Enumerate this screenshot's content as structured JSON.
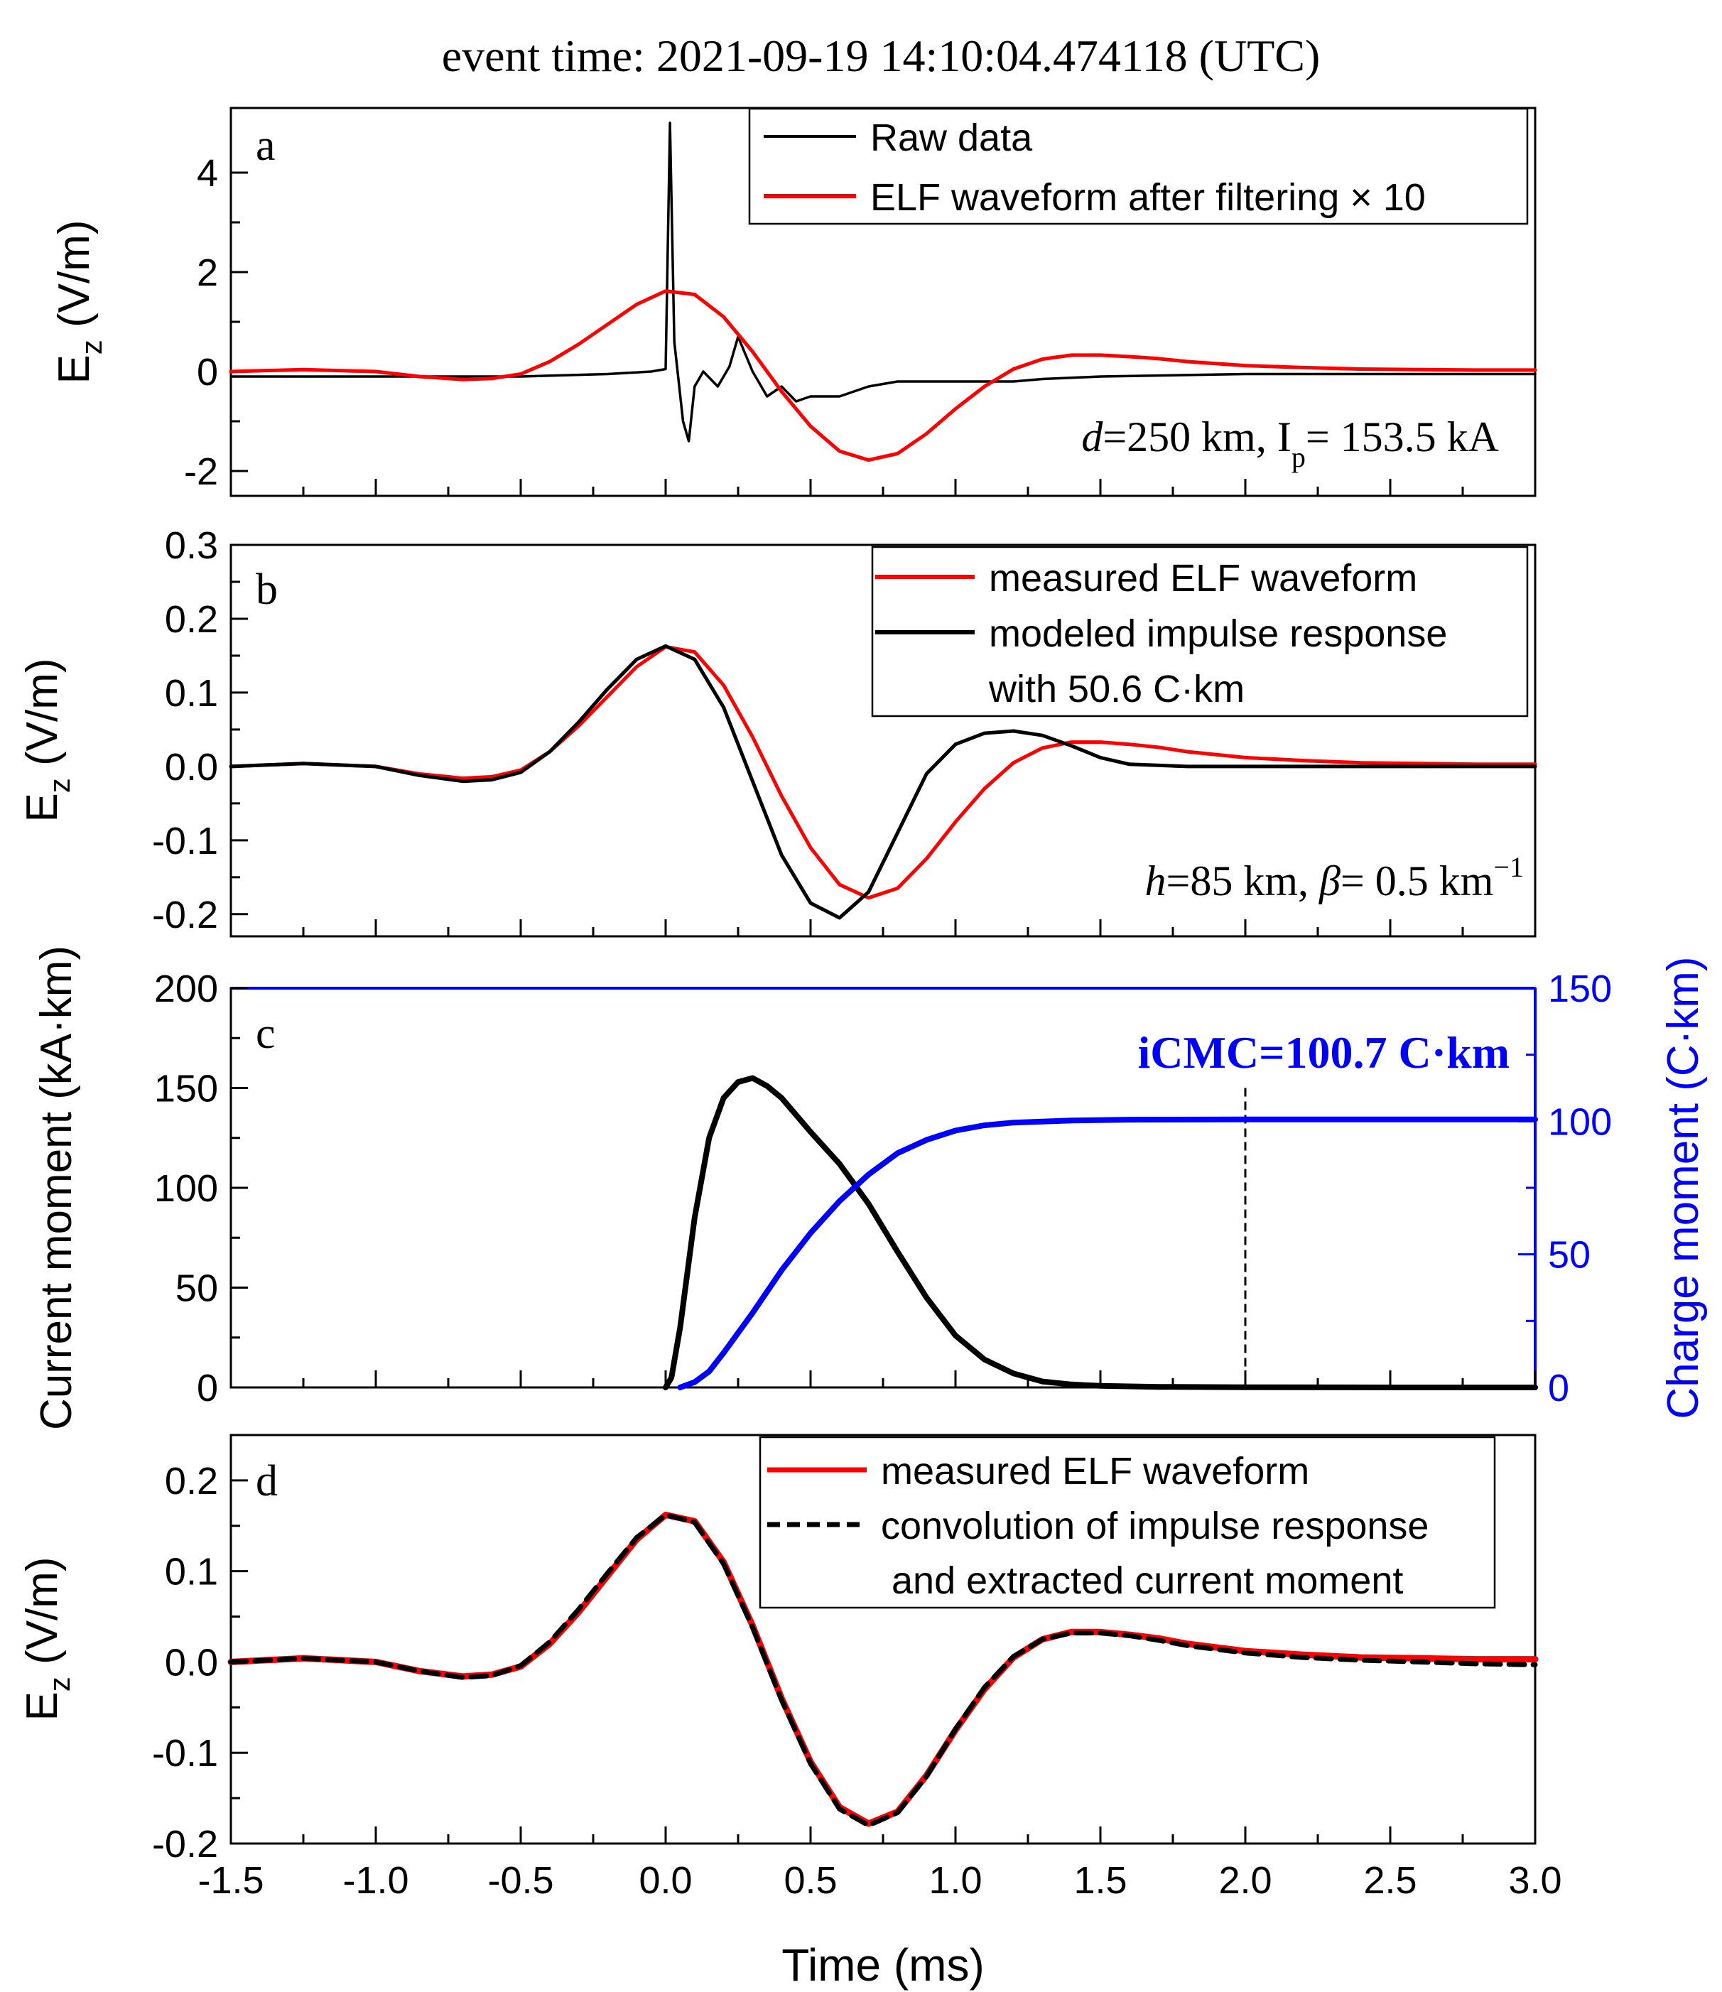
{
  "figure": {
    "title": "event time: 2021-09-19 14:10:04.474118 (UTC)",
    "xlabel": "Time (ms)",
    "xlim": [
      -1.5,
      3.0
    ],
    "xticks": [
      "-1.5",
      "-1.0",
      "-0.5",
      "0.0",
      "0.5",
      "1.0",
      "1.5",
      "2.0",
      "2.5",
      "3.0"
    ],
    "ylabel_ez": "E",
    "ylabel_ez_sub": "z",
    "ylabel_ez_unit": " (V/m)"
  },
  "panel_a": {
    "tag": "a",
    "annotation": {
      "d": "d",
      "rest": "=250 km, I",
      "sub": "p",
      "tail": "= 153.5 kA"
    },
    "legend": [
      "Raw data",
      "ELF waveform after filtering × 10"
    ]
  },
  "panel_b": {
    "tag": "b",
    "annotation": {
      "h": "h",
      "mid": "=85 km, ",
      "beta": "β",
      "tail": "= 0.5 km",
      "sup": "−1"
    },
    "legend": [
      "measured ELF waveform",
      "modeled impulse response",
      " with 50.6 C·km"
    ]
  },
  "panel_c": {
    "tag": "c",
    "ylabel_left": "Current moment (kA·km)",
    "ylabel_right": "Charge moment (C·km)",
    "annotation": "iCMC=100.7 C·km",
    "marker_time": 2.0
  },
  "panel_d": {
    "tag": "d",
    "legend": [
      "measured ELF waveform",
      "convolution of impulse response",
      "and extracted current moment"
    ]
  },
  "colors": {
    "red": "#ff0000",
    "blue": "#0000ff",
    "black": "#000000"
  },
  "chart_data": [
    {
      "type": "line",
      "panel": "a",
      "title": "event time: 2021-09-19 14:10:04.474118 (UTC)",
      "xlabel": "Time (ms)",
      "ylabel": "Ez (V/m)",
      "xlim": [
        -1.5,
        3.0
      ],
      "ylim": [
        -2.5,
        5.3
      ],
      "yticks": [
        "-2",
        "0",
        "2",
        "4"
      ],
      "series": [
        {
          "name": "Raw data",
          "color": "#000000",
          "x": [
            -1.5,
            -1.0,
            -0.5,
            -0.2,
            -0.05,
            0.0,
            0.015,
            0.03,
            0.06,
            0.08,
            0.1,
            0.13,
            0.18,
            0.22,
            0.25,
            0.3,
            0.35,
            0.4,
            0.45,
            0.5,
            0.55,
            0.6,
            0.65,
            0.7,
            0.8,
            0.9,
            1.0,
            1.1,
            1.2,
            1.3,
            1.5,
            2.0,
            2.5,
            3.0
          ],
          "y": [
            -0.1,
            -0.1,
            -0.1,
            -0.05,
            0.0,
            0.05,
            5.0,
            0.6,
            -1.0,
            -1.4,
            -0.3,
            0.0,
            -0.3,
            0.1,
            0.7,
            0.0,
            -0.5,
            -0.3,
            -0.6,
            -0.5,
            -0.5,
            -0.5,
            -0.4,
            -0.3,
            -0.2,
            -0.2,
            -0.2,
            -0.2,
            -0.2,
            -0.15,
            -0.1,
            -0.05,
            -0.05,
            -0.05
          ]
        },
        {
          "name": "ELF waveform after filtering × 10",
          "color": "#ff0000",
          "x": [
            -1.5,
            -1.25,
            -1.0,
            -0.85,
            -0.7,
            -0.6,
            -0.5,
            -0.4,
            -0.3,
            -0.2,
            -0.1,
            0.0,
            0.1,
            0.2,
            0.3,
            0.4,
            0.5,
            0.6,
            0.7,
            0.8,
            0.9,
            1.0,
            1.1,
            1.2,
            1.3,
            1.4,
            1.5,
            1.6,
            1.7,
            1.8,
            2.0,
            2.2,
            2.4,
            2.6,
            2.8,
            3.0
          ],
          "y": [
            0.0,
            0.04,
            0.0,
            -0.1,
            -0.16,
            -0.14,
            -0.05,
            0.2,
            0.55,
            0.95,
            1.35,
            1.62,
            1.55,
            1.1,
            0.4,
            -0.4,
            -1.1,
            -1.6,
            -1.78,
            -1.65,
            -1.25,
            -0.75,
            -0.3,
            0.05,
            0.25,
            0.33,
            0.33,
            0.3,
            0.26,
            0.2,
            0.12,
            0.08,
            0.05,
            0.04,
            0.03,
            0.03
          ]
        }
      ]
    },
    {
      "type": "line",
      "panel": "b",
      "xlabel": "Time (ms)",
      "ylabel": "Ez (V/m)",
      "xlim": [
        -1.5,
        3.0
      ],
      "ylim": [
        -0.23,
        0.3
      ],
      "yticks": [
        "-0.2",
        "-0.1",
        "0.0",
        "0.1",
        "0.2",
        "0.3"
      ],
      "series": [
        {
          "name": "measured ELF waveform",
          "color": "#ff0000",
          "x": [
            -1.5,
            -1.25,
            -1.0,
            -0.85,
            -0.7,
            -0.6,
            -0.5,
            -0.4,
            -0.3,
            -0.2,
            -0.1,
            0.0,
            0.1,
            0.2,
            0.3,
            0.4,
            0.5,
            0.6,
            0.7,
            0.8,
            0.9,
            1.0,
            1.1,
            1.2,
            1.3,
            1.4,
            1.5,
            1.6,
            1.7,
            1.8,
            2.0,
            2.2,
            2.4,
            2.6,
            2.8,
            3.0
          ],
          "y": [
            0.0,
            0.004,
            0.0,
            -0.01,
            -0.016,
            -0.014,
            -0.005,
            0.02,
            0.055,
            0.095,
            0.135,
            0.162,
            0.155,
            0.11,
            0.04,
            -0.04,
            -0.11,
            -0.16,
            -0.178,
            -0.165,
            -0.125,
            -0.075,
            -0.03,
            0.005,
            0.025,
            0.033,
            0.033,
            0.03,
            0.026,
            0.02,
            0.012,
            0.008,
            0.005,
            0.004,
            0.003,
            0.003
          ]
        },
        {
          "name": "modeled impulse response with 50.6 C·km",
          "color": "#000000",
          "x": [
            -1.5,
            -1.25,
            -1.0,
            -0.85,
            -0.7,
            -0.6,
            -0.5,
            -0.4,
            -0.3,
            -0.2,
            -0.1,
            0.0,
            0.1,
            0.2,
            0.3,
            0.4,
            0.5,
            0.6,
            0.7,
            0.8,
            0.9,
            1.0,
            1.1,
            1.2,
            1.3,
            1.4,
            1.5,
            1.6,
            1.8,
            2.0,
            2.5,
            3.0
          ],
          "y": [
            0.0,
            0.004,
            0.0,
            -0.012,
            -0.02,
            -0.018,
            -0.008,
            0.02,
            0.06,
            0.105,
            0.145,
            0.163,
            0.145,
            0.08,
            -0.02,
            -0.12,
            -0.185,
            -0.205,
            -0.17,
            -0.09,
            -0.01,
            0.03,
            0.045,
            0.048,
            0.042,
            0.028,
            0.012,
            0.003,
            0.0,
            0.0,
            0.0,
            0.0
          ]
        }
      ]
    },
    {
      "type": "line",
      "panel": "c",
      "xlabel": "Time (ms)",
      "ylabel": "Current moment (kA·km)",
      "ylabel_right": "Charge moment (C·km)",
      "xlim": [
        -1.5,
        3.0
      ],
      "ylim": [
        0,
        200
      ],
      "ylim_right": [
        0,
        150
      ],
      "yticks": [
        "0",
        "50",
        "100",
        "150",
        "200"
      ],
      "yticks_right": [
        "0",
        "50",
        "100",
        "150"
      ],
      "series": [
        {
          "name": "Current moment",
          "axis": "left",
          "color": "#000000",
          "x": [
            0.0,
            0.02,
            0.05,
            0.1,
            0.15,
            0.2,
            0.25,
            0.3,
            0.35,
            0.4,
            0.5,
            0.6,
            0.7,
            0.8,
            0.9,
            1.0,
            1.1,
            1.2,
            1.3,
            1.4,
            1.5,
            1.7,
            2.0,
            2.5,
            3.0
          ],
          "y": [
            0,
            5,
            30,
            85,
            125,
            145,
            153,
            155,
            151,
            145,
            128,
            112,
            92,
            68,
            45,
            26,
            14,
            7,
            3,
            1.5,
            0.8,
            0.3,
            0.1,
            0,
            0
          ]
        },
        {
          "name": "Charge moment",
          "axis": "right",
          "color": "#0000ff",
          "x": [
            0.05,
            0.1,
            0.15,
            0.2,
            0.3,
            0.4,
            0.5,
            0.6,
            0.7,
            0.8,
            0.9,
            1.0,
            1.1,
            1.2,
            1.4,
            1.6,
            2.0,
            3.0
          ],
          "y": [
            0,
            2,
            6,
            13,
            28,
            44,
            58,
            70,
            80,
            88,
            93,
            96.5,
            98.5,
            99.5,
            100.3,
            100.6,
            100.7,
            100.7
          ]
        }
      ]
    },
    {
      "type": "line",
      "panel": "d",
      "xlabel": "Time (ms)",
      "ylabel": "Ez (V/m)",
      "xlim": [
        -1.5,
        3.0
      ],
      "ylim": [
        -0.2,
        0.25
      ],
      "yticks": [
        "-0.2",
        "-0.1",
        "0.0",
        "0.1",
        "0.2"
      ],
      "series": [
        {
          "name": "measured ELF waveform",
          "color": "#ff0000",
          "x": [
            -1.5,
            -1.25,
            -1.0,
            -0.85,
            -0.7,
            -0.6,
            -0.5,
            -0.4,
            -0.3,
            -0.2,
            -0.1,
            0.0,
            0.1,
            0.2,
            0.3,
            0.4,
            0.5,
            0.6,
            0.7,
            0.8,
            0.9,
            1.0,
            1.1,
            1.2,
            1.3,
            1.4,
            1.5,
            1.6,
            1.7,
            1.8,
            2.0,
            2.2,
            2.4,
            2.6,
            2.8,
            3.0
          ],
          "y": [
            0.0,
            0.004,
            0.0,
            -0.01,
            -0.016,
            -0.014,
            -0.005,
            0.02,
            0.055,
            0.095,
            0.135,
            0.162,
            0.155,
            0.11,
            0.04,
            -0.04,
            -0.11,
            -0.16,
            -0.178,
            -0.165,
            -0.125,
            -0.075,
            -0.03,
            0.005,
            0.025,
            0.033,
            0.033,
            0.03,
            0.026,
            0.02,
            0.012,
            0.008,
            0.005,
            0.004,
            0.003,
            0.003
          ]
        },
        {
          "name": "convolution of impulse response and extracted current moment",
          "color": "#000000",
          "dash": true,
          "x": [
            -1.5,
            -1.25,
            -1.0,
            -0.85,
            -0.7,
            -0.6,
            -0.5,
            -0.4,
            -0.3,
            -0.2,
            -0.1,
            0.0,
            0.1,
            0.2,
            0.3,
            0.4,
            0.5,
            0.6,
            0.7,
            0.8,
            0.9,
            1.0,
            1.1,
            1.2,
            1.3,
            1.4,
            1.5,
            1.6,
            1.7,
            1.8,
            2.0,
            2.2,
            2.4,
            2.6,
            2.8,
            3.0
          ],
          "y": [
            0.0,
            0.004,
            0.0,
            -0.01,
            -0.017,
            -0.015,
            -0.004,
            0.022,
            0.058,
            0.098,
            0.137,
            0.162,
            0.154,
            0.108,
            0.038,
            -0.042,
            -0.112,
            -0.162,
            -0.18,
            -0.166,
            -0.126,
            -0.074,
            -0.028,
            0.006,
            0.025,
            0.032,
            0.032,
            0.029,
            0.024,
            0.018,
            0.01,
            0.005,
            0.002,
            0.0,
            -0.002,
            -0.003
          ]
        }
      ]
    }
  ]
}
